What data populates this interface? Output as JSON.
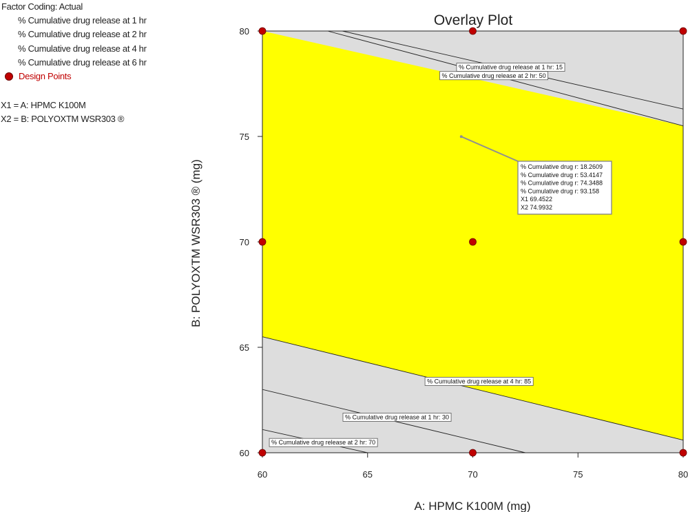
{
  "legend": {
    "title": "Factor Coding: Actual",
    "responses": [
      "% Cumulative drug release at 1 hr",
      "% Cumulative drug release at 2 hr",
      "% Cumulative drug release at 4 hr",
      "% Cumulative drug release at 6 hr"
    ],
    "design_points_label": "Design Points",
    "factor_x1": "X1 = A: HPMC K100M",
    "factor_x2": "X2 = B: POLYOXTM WSR303 ®"
  },
  "colors": {
    "feasible_region": "#ffff00",
    "infeasible_region": "#dddddd",
    "design_point": "#c00000",
    "contour_line": "#222222",
    "pointer": "#909090"
  },
  "chart_data": {
    "type": "contour-overlay",
    "title": "Overlay Plot",
    "xlabel": "A: HPMC K100M (mg)",
    "ylabel": "B: POLYOXTM WSR303 ® (mg)",
    "xlim": [
      60,
      80
    ],
    "ylim": [
      60,
      80
    ],
    "x_ticks": [
      60,
      65,
      70,
      75,
      80
    ],
    "y_ticks": [
      60,
      65,
      70,
      75,
      80
    ],
    "feasible_region": [
      [
        60,
        80
      ],
      [
        80,
        75.5
      ],
      [
        80,
        60.6
      ],
      [
        60,
        65.5
      ]
    ],
    "contours": [
      {
        "label": "% Cumulative drug release at 1 hr: 15",
        "points": [
          [
            63.8,
            80
          ],
          [
            80,
            76.3
          ]
        ],
        "label_at": [
          71.8,
          78.3
        ]
      },
      {
        "label": "% Cumulative drug release at 2 hr: 50",
        "points": [
          [
            63.1,
            80
          ],
          [
            80,
            75.5
          ]
        ],
        "label_at": [
          71.0,
          77.9
        ]
      },
      {
        "label": "% Cumulative drug release at 4 hr: 85",
        "points": [
          [
            60,
            65.5
          ],
          [
            80,
            60.6
          ]
        ],
        "label_at": [
          70.3,
          63.4
        ]
      },
      {
        "label": "% Cumulative drug release at 1 hr: 30",
        "points": [
          [
            60,
            63.0
          ],
          [
            72.5,
            60
          ]
        ],
        "label_at": [
          66.4,
          61.7
        ]
      },
      {
        "label": "% Cumulative drug release at 2 hr: 70",
        "points": [
          [
            60,
            61.1
          ],
          [
            65.0,
            60
          ]
        ],
        "label_at": [
          62.9,
          60.5
        ]
      }
    ],
    "design_points": [
      [
        60,
        80
      ],
      [
        70,
        80
      ],
      [
        80,
        80
      ],
      [
        60,
        70
      ],
      [
        70,
        70
      ],
      [
        80,
        70
      ],
      [
        60,
        60
      ],
      [
        70,
        60
      ],
      [
        80,
        60
      ]
    ],
    "flag": {
      "at": [
        69.4522,
        74.9932
      ],
      "lines": [
        "% Cumulative drug r: 18.2609",
        "% Cumulative drug r: 53.4147",
        "% Cumulative drug r: 74.3488",
        "% Cumulative drug r: 93.158",
        "X1  69.4522",
        "X2  74.9932"
      ]
    }
  }
}
